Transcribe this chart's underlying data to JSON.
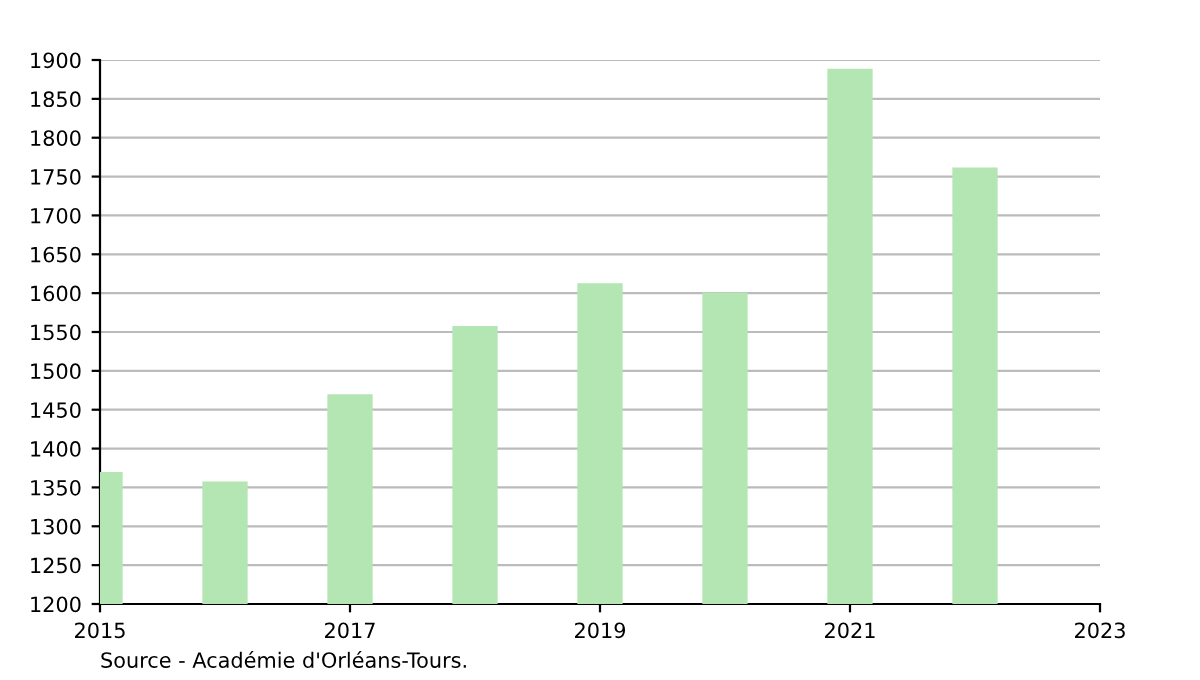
{
  "chart_data": {
    "type": "bar",
    "x": [
      2015,
      2016,
      2017,
      2018,
      2019,
      2020,
      2021,
      2022
    ],
    "values": [
      1368,
      1356,
      1468,
      1556,
      1611,
      1599,
      1887,
      1760
    ],
    "color": "#b3e6b3",
    "xlim": [
      2015,
      2023
    ],
    "xticks": [
      2015,
      2017,
      2019,
      2021,
      2023
    ],
    "ylim": [
      1200,
      1900
    ],
    "yticks": [
      1200,
      1250,
      1300,
      1350,
      1400,
      1450,
      1500,
      1550,
      1600,
      1650,
      1700,
      1750,
      1800,
      1850,
      1900
    ],
    "grid": "y",
    "annotations": [
      "Source - Académie d'Orléans-Tours."
    ]
  }
}
